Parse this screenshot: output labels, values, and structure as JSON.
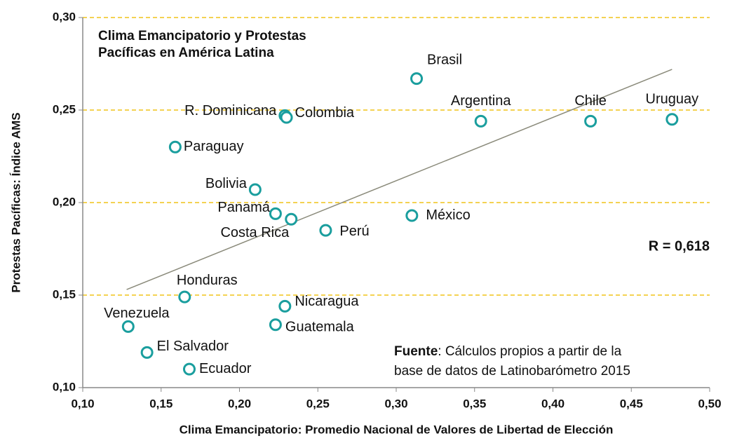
{
  "chart_data": {
    "type": "scatter",
    "title": [
      "Clima Emancipatorio y Protestas",
      "Pacíficas en América Latina"
    ],
    "xlabel": "Clima Emancipatorio: Promedio Nacional de Valores de Libertad de Elección",
    "ylabel": "Protestas Pacíficas: Índice AMS",
    "annotations": {
      "r": "R = 0,618",
      "source_bold": "Fuente",
      "source_line1": ": Cálculos propios a partir de la",
      "source_line2": "base de datos de Latinobarómetro 2015"
    },
    "color": "#1a9e9e",
    "grid": true,
    "grid_color": "#f0c419",
    "xlim": [
      0.1,
      0.5
    ],
    "ylim": [
      0.1,
      0.3
    ],
    "xticks": [
      {
        "value": 0.1,
        "label": "0,10"
      },
      {
        "value": 0.15,
        "label": "0,15"
      },
      {
        "value": 0.2,
        "label": "0,20"
      },
      {
        "value": 0.25,
        "label": "0,25"
      },
      {
        "value": 0.3,
        "label": "0,30"
      },
      {
        "value": 0.35,
        "label": "0,35"
      },
      {
        "value": 0.4,
        "label": "0,40"
      },
      {
        "value": 0.45,
        "label": "0,45"
      },
      {
        "value": 0.5,
        "label": "0,50"
      }
    ],
    "yticks": [
      {
        "value": 0.1,
        "label": "0,10"
      },
      {
        "value": 0.15,
        "label": "0,15"
      },
      {
        "value": 0.2,
        "label": "0,20"
      },
      {
        "value": 0.25,
        "label": "0,25"
      },
      {
        "value": 0.3,
        "label": "0,30"
      }
    ],
    "labels": [
      "Brasil",
      "Argentina",
      "Chile",
      "Uruguay",
      "R. Dominicana",
      "Colombia",
      "Paraguay",
      "Bolivia",
      "Panamá",
      "Costa Rica",
      "Perú",
      "México",
      "Honduras",
      "Venezuela",
      "El Salvador",
      "Ecuador",
      "Nicaragua",
      "Guatemala"
    ],
    "x": [
      0.313,
      0.354,
      0.424,
      0.476,
      0.229,
      0.23,
      0.159,
      0.21,
      0.223,
      0.233,
      0.255,
      0.31,
      0.165,
      0.129,
      0.141,
      0.168,
      0.229,
      0.223
    ],
    "y": [
      0.267,
      0.244,
      0.244,
      0.245,
      0.247,
      0.246,
      0.23,
      0.207,
      0.194,
      0.191,
      0.185,
      0.193,
      0.149,
      0.133,
      0.119,
      0.11,
      0.144,
      0.134
    ],
    "trendline": {
      "x": [
        0.128,
        0.476
      ],
      "y": [
        0.153,
        0.272
      ],
      "color": "#8a8a7a"
    }
  }
}
